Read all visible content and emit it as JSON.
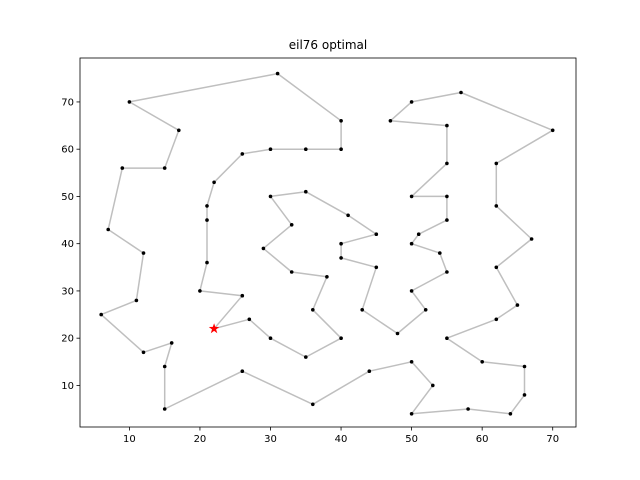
{
  "chart_data": {
    "type": "scatter",
    "title": "eil76 optimal",
    "xlabel": "",
    "ylabel": "",
    "xlim": [
      3,
      73.3
    ],
    "ylim": [
      1.2,
      79.3
    ],
    "x_ticks": [
      10,
      20,
      30,
      40,
      50,
      60,
      70
    ],
    "y_ticks": [
      10,
      20,
      30,
      40,
      50,
      60,
      70
    ],
    "grid": false,
    "colors": {
      "route": "#bfbfbf",
      "city": "#000000",
      "start": "#ff0000"
    },
    "start": [
      22,
      22
    ],
    "tour": [
      [
        22,
        22
      ],
      [
        26,
        29
      ],
      [
        20,
        30
      ],
      [
        21,
        36
      ],
      [
        21,
        45
      ],
      [
        21,
        48
      ],
      [
        22,
        53
      ],
      [
        26,
        59
      ],
      [
        30,
        60
      ],
      [
        35,
        60
      ],
      [
        40,
        60
      ],
      [
        40,
        66
      ],
      [
        31,
        76
      ],
      [
        10,
        70
      ],
      [
        17,
        64
      ],
      [
        15,
        56
      ],
      [
        9,
        56
      ],
      [
        7,
        43
      ],
      [
        12,
        38
      ],
      [
        11,
        28
      ],
      [
        6,
        25
      ],
      [
        12,
        17
      ],
      [
        16,
        19
      ],
      [
        15,
        14
      ],
      [
        15,
        5
      ],
      [
        26,
        13
      ],
      [
        36,
        6
      ],
      [
        44,
        13
      ],
      [
        50,
        15
      ],
      [
        53,
        10
      ],
      [
        50,
        4
      ],
      [
        58,
        5
      ],
      [
        64,
        4
      ],
      [
        66,
        8
      ],
      [
        66,
        14
      ],
      [
        60,
        15
      ],
      [
        55,
        20
      ],
      [
        62,
        24
      ],
      [
        65,
        27
      ],
      [
        62,
        35
      ],
      [
        67,
        41
      ],
      [
        62,
        48
      ],
      [
        62,
        57
      ],
      [
        70,
        64
      ],
      [
        57,
        72
      ],
      [
        50,
        70
      ],
      [
        47,
        66
      ],
      [
        55,
        65
      ],
      [
        55,
        57
      ],
      [
        50,
        50
      ],
      [
        55,
        50
      ],
      [
        55,
        45
      ],
      [
        51,
        42
      ],
      [
        50,
        40
      ],
      [
        54,
        38
      ],
      [
        55,
        34
      ],
      [
        50,
        30
      ],
      [
        52,
        26
      ],
      [
        48,
        21
      ],
      [
        43,
        26
      ],
      [
        45,
        35
      ],
      [
        40,
        37
      ],
      [
        40,
        40
      ],
      [
        45,
        42
      ],
      [
        41,
        46
      ],
      [
        35,
        51
      ],
      [
        30,
        50
      ],
      [
        33,
        44
      ],
      [
        29,
        39
      ],
      [
        33,
        34
      ],
      [
        38,
        33
      ],
      [
        36,
        26
      ],
      [
        40,
        20
      ],
      [
        35,
        16
      ],
      [
        30,
        20
      ],
      [
        27,
        24
      ],
      [
        22,
        22
      ]
    ]
  }
}
